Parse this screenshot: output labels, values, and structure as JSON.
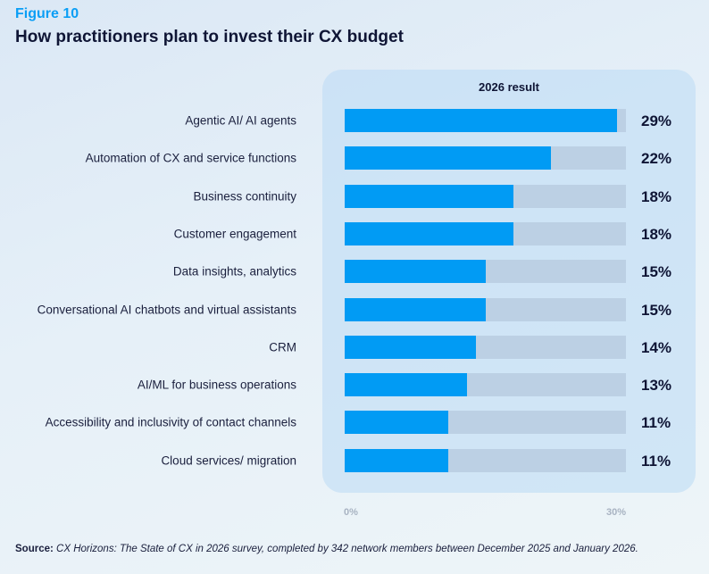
{
  "chart_data": {
    "type": "bar",
    "figure_label": "Figure 10",
    "title": "How practitioners plan to invest their CX budget",
    "panel_title": "2026 result",
    "categories": [
      "Agentic AI/ AI agents",
      "Automation of CX and service functions",
      "Business continuity",
      "Customer engagement",
      "Data insights, analytics",
      "Conversational AI chatbots and virtual assistants",
      "CRM",
      "AI/ML for business operations",
      "Accessibility and inclusivity of contact channels",
      "Cloud services/ migration"
    ],
    "values": [
      29,
      22,
      18,
      18,
      15,
      15,
      14,
      13,
      11,
      11
    ],
    "value_labels": [
      "29%",
      "22%",
      "18%",
      "18%",
      "15%",
      "15%",
      "14%",
      "13%",
      "11%",
      "11%"
    ],
    "xlim": [
      0,
      30
    ],
    "x_ticks": [
      "0%",
      "30%"
    ],
    "orientation": "horizontal",
    "colors": {
      "bar": "#019bf4",
      "track": "#bcd0e4"
    }
  },
  "source": {
    "label": "Source:",
    "text": " CX Horizons: The State of CX in 2026 survey, completed by 342 network members between December 2025 and January 2026."
  }
}
